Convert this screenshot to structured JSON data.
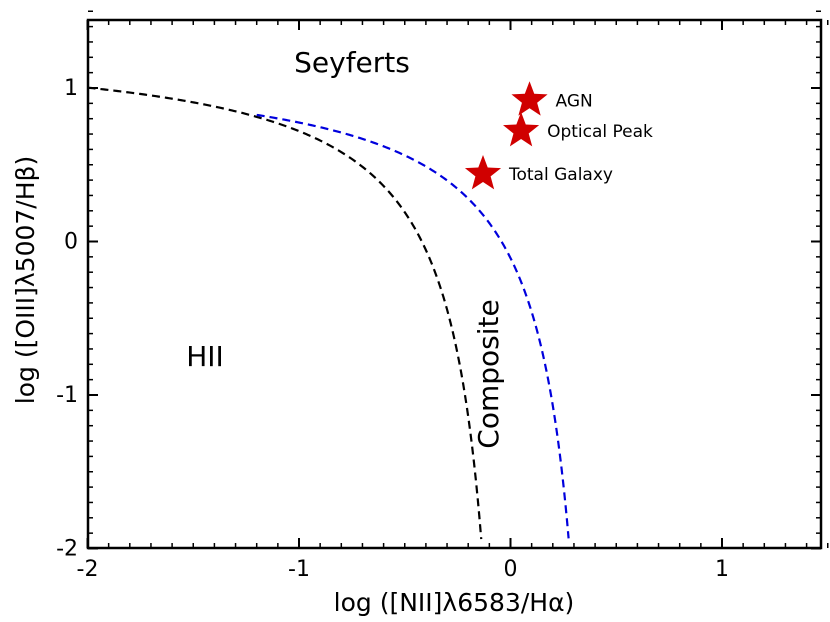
{
  "chart_data": {
    "type": "scatter",
    "xlabel": "log ([NII]λ6583/Hα)",
    "ylabel": "log ([OIII]λ5007/Hβ)",
    "xlim": [
      -2,
      1.5
    ],
    "ylim": [
      -2,
      1.5
    ],
    "x_ticks": [
      "-2",
      "-1",
      "0",
      "1"
    ],
    "y_ticks": [
      "-2",
      "-1",
      "0",
      "1"
    ],
    "x_tick_values": [
      -2,
      -1,
      0,
      1
    ],
    "y_tick_values": [
      -2,
      -1,
      0,
      1
    ],
    "grid": false,
    "region_labels": {
      "seyferts": "Seyferts",
      "hii": "HII",
      "composite": "Composite"
    },
    "series": [
      {
        "marker": "star",
        "color": "#d00000",
        "points": [
          {
            "label": "AGN",
            "x": 0.09,
            "y": 0.92
          },
          {
            "label": "Optical Peak",
            "x": 0.05,
            "y": 0.72
          },
          {
            "label": "Total Galaxy",
            "x": -0.13,
            "y": 0.44
          }
        ]
      }
    ],
    "curves": [
      {
        "id": "kauffmann",
        "style": "dashed",
        "color": "#000000"
      },
      {
        "id": "kewley",
        "style": "dashed",
        "color": "#0000dd"
      }
    ]
  }
}
